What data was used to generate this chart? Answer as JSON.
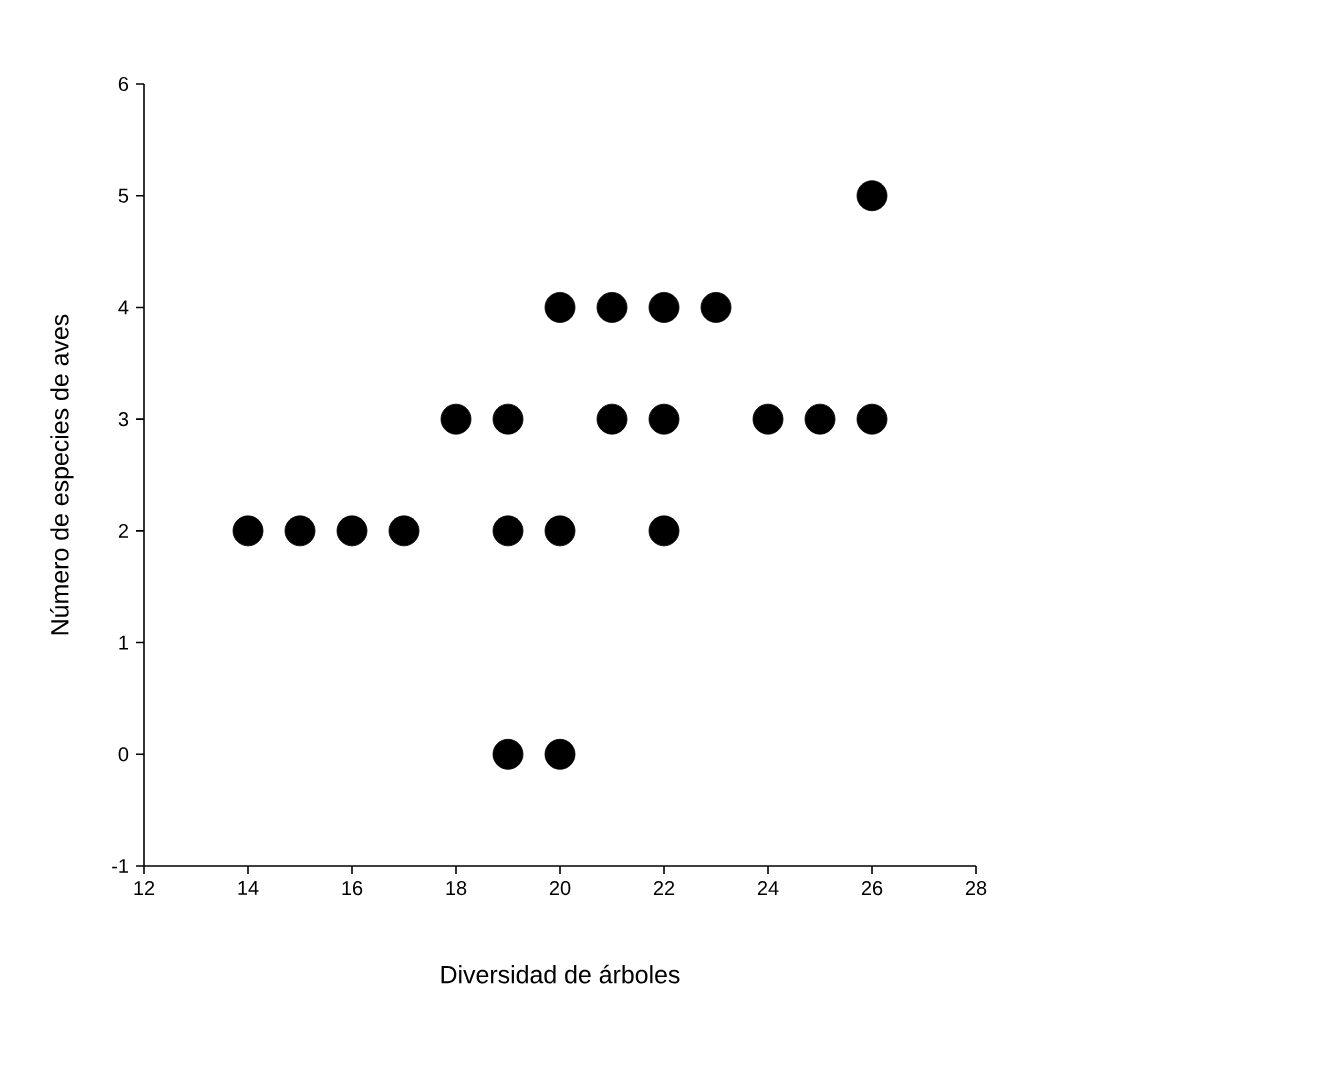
{
  "chart_data": {
    "type": "scatter",
    "xlabel": "Diversidad de árboles",
    "ylabel": "Número de especies de aves",
    "x": [
      14,
      15,
      16,
      17,
      18,
      19,
      19,
      19,
      20,
      20,
      20,
      21,
      21,
      22,
      22,
      22,
      23,
      24,
      25,
      26,
      26
    ],
    "values": [
      2,
      2,
      2,
      2,
      3,
      3,
      2,
      0,
      4,
      2,
      0,
      4,
      3,
      4,
      3,
      2,
      4,
      3,
      3,
      5,
      3
    ],
    "color": "#000000",
    "marker": "circle",
    "xlim": [
      12,
      28
    ],
    "ylim": [
      -1,
      6
    ],
    "xticks": [
      12,
      14,
      16,
      18,
      20,
      22,
      24,
      26,
      28
    ],
    "yticks": [
      -1,
      0,
      1,
      2,
      3,
      4,
      5,
      6
    ]
  }
}
